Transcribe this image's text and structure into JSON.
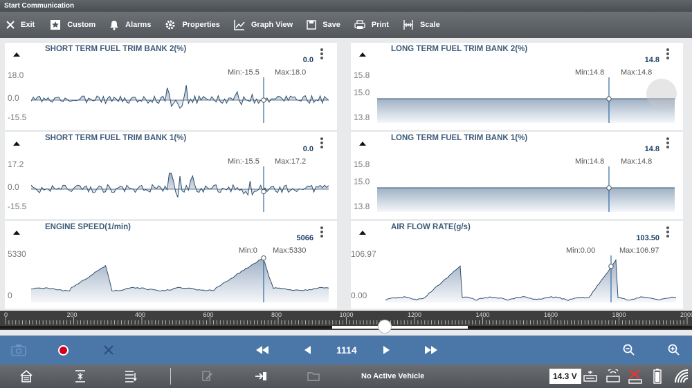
{
  "window": {
    "title": "Start Communication"
  },
  "toolbar": {
    "exit": "Exit",
    "custom": "Custom",
    "alarms": "Alarms",
    "properties": "Properties",
    "graph_view": "Graph View",
    "save": "Save",
    "print": "Print",
    "scale": "Scale"
  },
  "panels": [
    {
      "title": "SHORT TERM FUEL TRIM BANK 2(%)",
      "value": "0.0",
      "min": "Min:-15.5",
      "max": "Max:18.0",
      "y_ticks": [
        "18.0",
        "0.0",
        "-15.5"
      ]
    },
    {
      "title": "LONG TERM FUEL TRIM BANK 2(%)",
      "value": "14.8",
      "min": "Min:14.8",
      "max": "Max:14.8",
      "y_ticks": [
        "15.8",
        "15.0",
        "13.8"
      ]
    },
    {
      "title": "SHORT TERM FUEL TRIM BANK 1(%)",
      "value": "0.0",
      "min": "Min:-15.5",
      "max": "Max:17.2",
      "y_ticks": [
        "17.2",
        "0.0",
        "-15.5"
      ]
    },
    {
      "title": "LONG TERM FUEL TRIM BANK 1(%)",
      "value": "14.8",
      "min": "Min:14.8",
      "max": "Max:14.8",
      "y_ticks": [
        "15.8",
        "15.0",
        "13.8"
      ]
    },
    {
      "title": "ENGINE SPEED(1/min)",
      "value": "5066",
      "min": "Min:0",
      "max": "Max:5330",
      "y_ticks": [
        "5330",
        "0"
      ]
    },
    {
      "title": "AIR FLOW RATE(g/s)",
      "value": "103.50",
      "min": "Min:0.00",
      "max": "Max:106.97",
      "y_ticks": [
        "106.97",
        "0.00"
      ]
    }
  ],
  "timeline": {
    "ticks": [
      "0",
      "200",
      "400",
      "600",
      "800",
      "1000",
      "1200",
      "1400",
      "1600",
      "1800",
      "2000"
    ]
  },
  "playback": {
    "frame": "1114"
  },
  "status": {
    "vehicle": "No Active Vehicle",
    "voltage": "14.3 V"
  },
  "colors": {
    "accent": "#4b76a8",
    "trace": "#2f4f6e",
    "fill": "#c9d3df",
    "record": "#d0021b"
  }
}
